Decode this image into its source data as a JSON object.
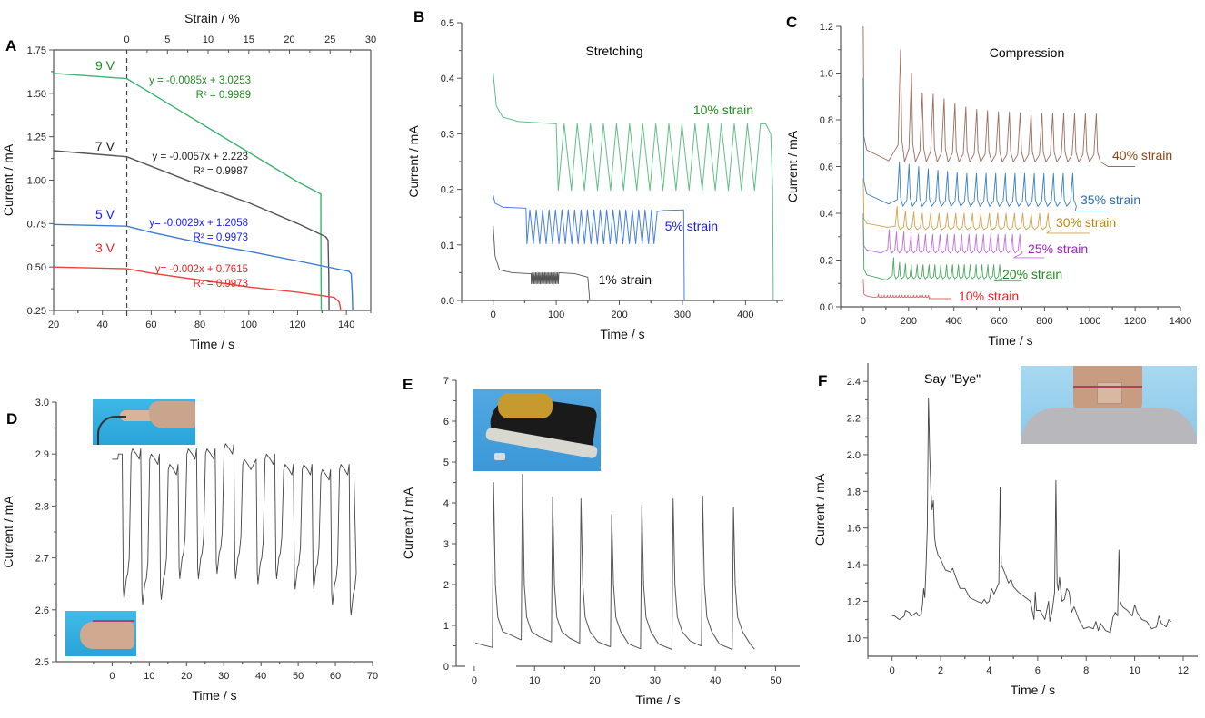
{
  "figure": {
    "panels": [
      "A",
      "B",
      "C",
      "D",
      "E",
      "F"
    ]
  },
  "chart_data": [
    {
      "id": "A",
      "type": "line",
      "panel_label": "A",
      "xlabel": "Time / s",
      "ylabel": "Current / mA",
      "x2label": "Strain / %",
      "xlim": [
        20,
        150
      ],
      "ylim": [
        0.25,
        1.75
      ],
      "xticks": [
        20,
        40,
        60,
        80,
        100,
        120,
        140
      ],
      "yticks": [
        0.25,
        0.5,
        0.75,
        1.0,
        1.25,
        1.5,
        1.75
      ],
      "ytick_labels": [
        "0.25",
        "0.50",
        "0.75",
        "1.00",
        "1.25",
        "1.50",
        "1.75"
      ],
      "x2ticks": [
        0,
        5,
        10,
        15,
        20,
        25,
        30
      ],
      "x2_zero_at_time": 50,
      "x2_seconds_per_unit": 3.33,
      "dashed_vline_x": 50,
      "grid": false,
      "series": [
        {
          "name": "9 V",
          "color": "#3cb371",
          "label_color": "#228b22",
          "x": [
            20,
            50,
            60,
            80,
            100,
            120,
            129.5,
            129.6,
            129.7
          ],
          "y": [
            1.615,
            1.585,
            1.5,
            1.33,
            1.16,
            0.99,
            0.92,
            0.5,
            0.25
          ],
          "equation": "y = -0.0085x + 3.0253",
          "r2": "R² = 0.9989"
        },
        {
          "name": "7 V",
          "color": "#555555",
          "label_color": "#222222",
          "x": [
            20,
            50,
            60,
            80,
            100,
            120,
            131.5,
            132.5,
            132.8,
            132.9
          ],
          "y": [
            1.17,
            1.135,
            1.08,
            0.97,
            0.87,
            0.75,
            0.675,
            0.655,
            0.45,
            0.25
          ],
          "equation": "y = -0.0057x + 2.223",
          "r2": "R² = 0.9987"
        },
        {
          "name": "5 V",
          "color": "#3a7bd5",
          "label_color": "#1a1aff",
          "x": [
            20,
            50,
            60,
            80,
            100,
            120,
            141,
            142,
            142.4,
            142.6
          ],
          "y": [
            0.745,
            0.735,
            0.7,
            0.64,
            0.59,
            0.535,
            0.475,
            0.46,
            0.35,
            0.25
          ],
          "equation": "y= -0.0029x + 1.2058",
          "r2": "R² = 0.9973"
        },
        {
          "name": "3 V",
          "color": "#f04040",
          "label_color": "#ee2222",
          "x": [
            20,
            50,
            60,
            80,
            100,
            120,
            130,
            135,
            137,
            137.5,
            137.6
          ],
          "y": [
            0.5,
            0.49,
            0.465,
            0.425,
            0.385,
            0.355,
            0.335,
            0.325,
            0.3,
            0.27,
            0.25
          ],
          "equation": "y= -0.002x + 0.7615",
          "r2": "R² = 0.9973"
        }
      ]
    },
    {
      "id": "B",
      "type": "line",
      "panel_label": "B",
      "title": "Stretching",
      "xlabel": "Time / s",
      "ylabel": "Current / mA",
      "xlim": [
        -50,
        460
      ],
      "ylim": [
        0.0,
        0.5
      ],
      "xticks": [
        0,
        100,
        200,
        300,
        400
      ],
      "yticks": [
        0.0,
        0.1,
        0.2,
        0.3,
        0.4,
        0.5
      ],
      "ytick_labels": [
        "0.0",
        "0.1",
        "0.2",
        "0.3",
        "0.4",
        "0.5"
      ],
      "grid": false,
      "series": [
        {
          "name": "10% strain",
          "color": "#5fbf85",
          "label_color": "#228b22",
          "baseline": [
            [
              0,
              0.41
            ],
            [
              5,
              0.35
            ],
            [
              15,
              0.33
            ],
            [
              40,
              0.322
            ],
            [
              100,
              0.318
            ]
          ],
          "cycles": {
            "start": 100,
            "end": 432,
            "count": 16,
            "high": 0.318,
            "low": 0.198
          },
          "tail": [
            [
              432,
              0.318
            ],
            [
              440,
              0.3
            ],
            [
              443,
              0.2
            ],
            [
              444,
              0.0
            ]
          ]
        },
        {
          "name": "5% strain",
          "color": "#4a80e0",
          "label_color": "#1a1aff",
          "baseline": [
            [
              0,
              0.19
            ],
            [
              3,
              0.175
            ],
            [
              15,
              0.168
            ],
            [
              52,
              0.166
            ]
          ],
          "cycles": {
            "start": 52,
            "end": 255,
            "count": 20,
            "high": 0.163,
            "low": 0.102
          },
          "tail": [
            [
              255,
              0.102
            ],
            [
              260,
              0.16
            ],
            [
              270,
              0.162
            ],
            [
              302,
              0.163
            ],
            [
              303,
              0.0
            ]
          ]
        },
        {
          "name": "1% strain",
          "color": "#555555",
          "label_color": "#111111",
          "baseline": [
            [
              0,
              0.135
            ],
            [
              3,
              0.08
            ],
            [
              10,
              0.055
            ],
            [
              30,
              0.05
            ],
            [
              60,
              0.048
            ]
          ],
          "cycles": {
            "start": 60,
            "end": 105,
            "count": 22,
            "high": 0.05,
            "low": 0.03
          },
          "tail": [
            [
              105,
              0.05
            ],
            [
              130,
              0.048
            ],
            [
              150,
              0.042
            ],
            [
              153,
              0.0
            ]
          ]
        }
      ]
    },
    {
      "id": "C",
      "type": "line",
      "panel_label": "C",
      "title": "Compression",
      "xlabel": "Time / s",
      "ylabel": "Current / mA",
      "xlim": [
        -100,
        1400
      ],
      "ylim": [
        0.0,
        1.2
      ],
      "xticks": [
        0,
        200,
        400,
        600,
        800,
        1000,
        1200,
        1400
      ],
      "yticks": [
        0.0,
        0.2,
        0.4,
        0.6,
        0.8,
        1.0,
        1.2
      ],
      "ytick_labels": [
        "0.0",
        "0.2",
        "0.4",
        "0.6",
        "0.8",
        "1.0",
        "1.2"
      ],
      "grid": false,
      "series": [
        {
          "name": "40% strain",
          "color": "#9b6b5e",
          "label_color": "#8b4513",
          "start_peak": 1.2,
          "rest": 0.625,
          "cycle_start": 120,
          "period": 48,
          "count": 19,
          "peaks": [
            1.1,
            1.0,
            0.915,
            0.91,
            0.89,
            0.87,
            0.855,
            0.845,
            0.84,
            0.835,
            0.833,
            0.831,
            0.83,
            0.828,
            0.828,
            0.828,
            0.827,
            0.827,
            0.826
          ],
          "low": 0.62,
          "end": 1080,
          "final": 0.6,
          "tail_end": 1200
        },
        {
          "name": "35% strain",
          "color": "#3b7fc0",
          "label_color": "#2a6eb0",
          "start_peak": 0.98,
          "rest": 0.44,
          "cycle_start": 120,
          "period": 42.5,
          "count": 19,
          "peaks": [
            0.62,
            0.61,
            0.6,
            0.59,
            0.585,
            0.58,
            0.575,
            0.57,
            0.57,
            0.57,
            0.57,
            0.57,
            0.57,
            0.57,
            0.57,
            0.57,
            0.57,
            0.57,
            0.57
          ],
          "low": 0.43,
          "end": 935,
          "final": 0.41,
          "tail_end": 1080
        },
        {
          "name": "30% strain",
          "color": "#d4a24c",
          "label_color": "#b8860b",
          "start_peak": 0.55,
          "rest": 0.34,
          "cycle_start": 115,
          "period": 37,
          "count": 19,
          "peaks": [
            0.43,
            0.41,
            0.405,
            0.4,
            0.4,
            0.4,
            0.4,
            0.4,
            0.4,
            0.4,
            0.4,
            0.4,
            0.4,
            0.4,
            0.4,
            0.4,
            0.4,
            0.4,
            0.4
          ],
          "low": 0.33,
          "end": 810,
          "final": 0.315,
          "tail_end": 1000
        },
        {
          "name": "25% strain",
          "color": "#c070e0",
          "label_color": "#a020c0",
          "start_peak": 0.4,
          "rest": 0.23,
          "cycle_start": 85,
          "period": 32,
          "count": 19,
          "peaks": [
            0.33,
            0.32,
            0.32,
            0.31,
            0.31,
            0.31,
            0.31,
            0.31,
            0.31,
            0.31,
            0.31,
            0.31,
            0.31,
            0.31,
            0.31,
            0.31,
            0.31,
            0.31,
            0.31
          ],
          "low": 0.23,
          "end": 665,
          "final": 0.21,
          "tail_end": 800
        },
        {
          "name": "20% strain",
          "color": "#4aa860",
          "label_color": "#1e8c1e",
          "start_peak": 0.38,
          "rest": 0.115,
          "cycle_start": 110,
          "period": 26,
          "count": 19,
          "peaks": [
            0.21,
            0.19,
            0.185,
            0.18,
            0.18,
            0.18,
            0.18,
            0.18,
            0.18,
            0.18,
            0.18,
            0.18,
            0.18,
            0.18,
            0.18,
            0.18,
            0.18,
            0.18,
            0.18
          ],
          "low": 0.12,
          "end": 580,
          "final": 0.11,
          "tail_end": 700
        },
        {
          "name": "10% strain",
          "color": "#f06060",
          "label_color": "#ee2222",
          "start_peak": 0.12,
          "rest": 0.04,
          "cycle_start": 55,
          "period": 13,
          "count": 18,
          "peaks": [
            0.055,
            0.05,
            0.05,
            0.05,
            0.05,
            0.05,
            0.05,
            0.05,
            0.05,
            0.05,
            0.05,
            0.05,
            0.05,
            0.05,
            0.05,
            0.05,
            0.05,
            0.05
          ],
          "low": 0.04,
          "end": 290,
          "final": 0.035,
          "tail_end": 385
        }
      ]
    },
    {
      "id": "D",
      "type": "line",
      "panel_label": "D",
      "xlabel": "Time / s",
      "ylabel": "Current / mA",
      "xlim": [
        -15,
        70
      ],
      "ylim": [
        2.5,
        3.0
      ],
      "xticks": [
        0,
        10,
        20,
        30,
        40,
        50,
        60,
        70
      ],
      "yticks": [
        2.5,
        2.6,
        2.7,
        2.8,
        2.9,
        3.0
      ],
      "ytick_labels": [
        "2.5",
        "2.6",
        "2.7",
        "2.8",
        "2.9",
        "3.0"
      ],
      "grid": false,
      "color": "#444444",
      "high_levels": [
        2.9,
        2.91,
        2.9,
        2.88,
        2.91,
        2.91,
        2.92,
        2.89,
        2.9,
        2.88,
        2.88,
        2.87,
        2.88
      ],
      "low_levels": [
        2.62,
        2.61,
        2.62,
        2.66,
        2.66,
        2.67,
        2.66,
        2.65,
        2.66,
        2.64,
        2.64,
        2.61,
        2.59
      ],
      "cycle_times": [
        3,
        8,
        13,
        18,
        23,
        28,
        33,
        39,
        44,
        49,
        54,
        59,
        64
      ],
      "start": 0,
      "end": 65,
      "insets": [
        {
          "description": "finger-straight-photo"
        },
        {
          "description": "finger-bent-photo"
        }
      ]
    },
    {
      "id": "E",
      "type": "line",
      "panel_label": "E",
      "xlabel": "Time / s",
      "ylabel": "Current / mA",
      "xlim": [
        -3,
        54
      ],
      "ylim": [
        0,
        7
      ],
      "xticks": [
        0,
        10,
        20,
        30,
        40,
        50
      ],
      "yticks": [
        0,
        1,
        2,
        3,
        4,
        5,
        6,
        7
      ],
      "ytick_labels": [
        "0",
        "1",
        "2",
        "3",
        "4",
        "5",
        "6",
        "7"
      ],
      "grid": false,
      "color": "#555555",
      "peak_times": [
        3.2,
        8,
        13,
        17.7,
        22.8,
        27.8,
        33,
        37.9,
        43
      ],
      "peak_values": [
        4.5,
        4.7,
        4.15,
        4.1,
        3.72,
        3.95,
        4.1,
        4.17,
        3.9
      ],
      "valley_values": [
        0.46,
        0.65,
        0.6,
        0.57,
        0.48,
        0.43,
        0.42,
        0.5,
        0.42
      ],
      "start": [
        0.2,
        0.57
      ],
      "end": [
        46.5,
        0.42
      ],
      "insets": [
        {
          "description": "shoe-stepping-photo"
        }
      ]
    },
    {
      "id": "F",
      "type": "line",
      "panel_label": "F",
      "title": "Say \"Bye\"",
      "xlabel": "Time / s",
      "ylabel": "Current / mA",
      "xlim": [
        -1,
        12.6
      ],
      "ylim": [
        0.9,
        2.5
      ],
      "xticks": [
        0,
        2,
        4,
        6,
        8,
        10,
        12
      ],
      "yticks": [
        1.0,
        1.2,
        1.4,
        1.6,
        1.8,
        2.0,
        2.2,
        2.4
      ],
      "ytick_labels": [
        "1.0",
        "1.2",
        "1.4",
        "1.6",
        "1.8",
        "2.0",
        "2.2",
        "2.4"
      ],
      "grid": false,
      "color": "#444444",
      "x": [
        0.0,
        0.1,
        0.2,
        0.3,
        0.4,
        0.5,
        0.55,
        0.7,
        0.8,
        0.9,
        1.0,
        1.1,
        1.2,
        1.25,
        1.3,
        1.35,
        1.4,
        1.45,
        1.5,
        1.55,
        1.6,
        1.65,
        1.7,
        1.75,
        1.8,
        1.9,
        2.0,
        2.2,
        2.4,
        2.5,
        2.6,
        2.8,
        3.0,
        3.2,
        3.5,
        3.7,
        3.8,
        3.9,
        4.0,
        4.1,
        4.2,
        4.3,
        4.4,
        4.45,
        4.5,
        4.6,
        4.8,
        4.9,
        5.0,
        5.2,
        5.5,
        5.7,
        5.85,
        5.9,
        5.95,
        6.1,
        6.3,
        6.45,
        6.5,
        6.6,
        6.7,
        6.75,
        6.8,
        6.85,
        6.9,
        7.0,
        7.1,
        7.2,
        7.3,
        7.4,
        7.5,
        7.7,
        7.9,
        8.1,
        8.3,
        8.4,
        8.5,
        8.6,
        8.8,
        9.0,
        9.1,
        9.2,
        9.3,
        9.35,
        9.4,
        9.5,
        9.7,
        9.9,
        10.0,
        10.1,
        10.3,
        10.5,
        10.7,
        10.9,
        11.0,
        11.1,
        11.3,
        11.4,
        11.5
      ],
      "y": [
        1.12,
        1.12,
        1.11,
        1.1,
        1.11,
        1.12,
        1.15,
        1.14,
        1.12,
        1.13,
        1.14,
        1.12,
        1.13,
        1.18,
        1.27,
        1.22,
        1.4,
        1.6,
        2.31,
        2.0,
        1.8,
        1.7,
        1.75,
        1.55,
        1.5,
        1.45,
        1.43,
        1.37,
        1.36,
        1.38,
        1.34,
        1.27,
        1.27,
        1.22,
        1.2,
        1.19,
        1.21,
        1.19,
        1.2,
        1.27,
        1.24,
        1.27,
        1.3,
        1.82,
        1.4,
        1.37,
        1.3,
        1.32,
        1.28,
        1.25,
        1.22,
        1.2,
        1.1,
        1.25,
        1.15,
        1.15,
        1.1,
        1.2,
        1.09,
        1.15,
        1.25,
        1.86,
        1.3,
        1.26,
        1.33,
        1.2,
        1.21,
        1.27,
        1.25,
        1.14,
        1.17,
        1.1,
        1.05,
        1.06,
        1.05,
        1.09,
        1.04,
        1.08,
        1.04,
        1.03,
        1.11,
        1.14,
        1.12,
        1.48,
        1.2,
        1.17,
        1.15,
        1.12,
        1.18,
        1.14,
        1.1,
        1.09,
        1.05,
        1.06,
        1.12,
        1.08,
        1.06,
        1.1,
        1.09
      ],
      "insets": [
        {
          "description": "neck-sensor-photo"
        }
      ]
    }
  ]
}
